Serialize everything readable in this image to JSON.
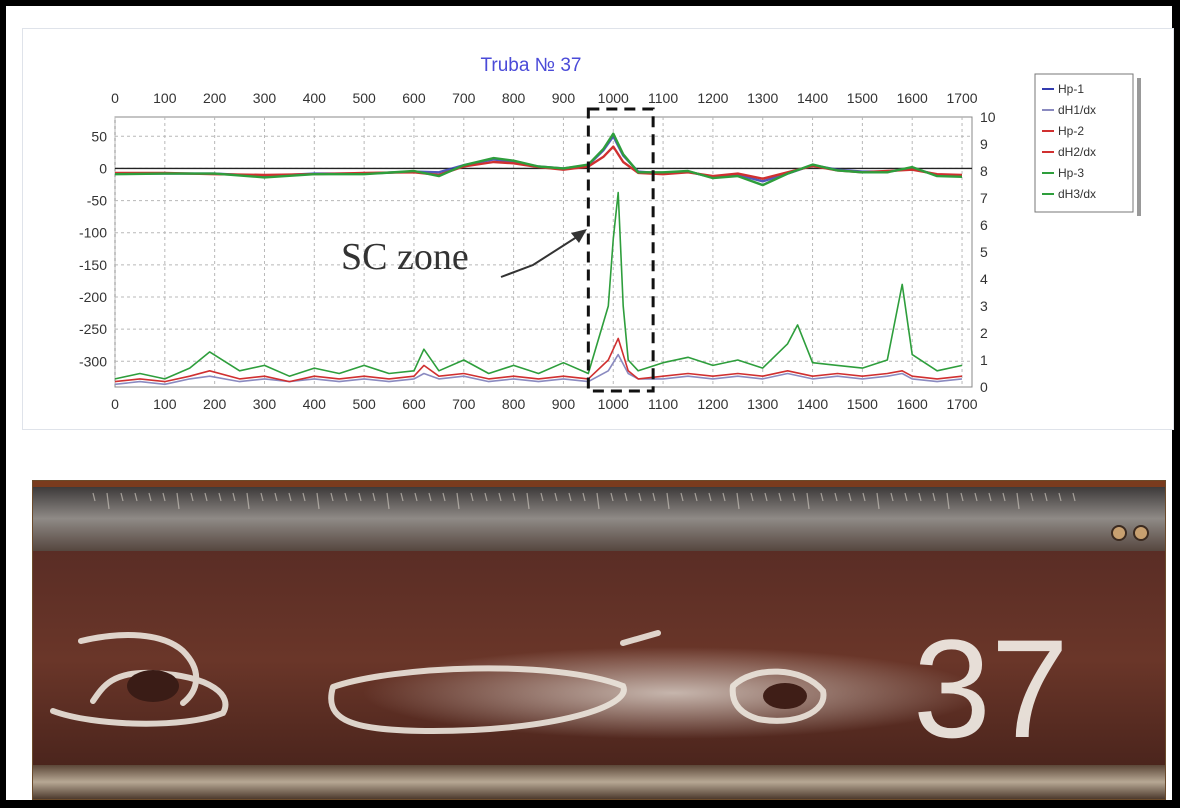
{
  "chart_data": {
    "type": "line",
    "title": "Truba № 37",
    "x_ticks": [
      0,
      100,
      200,
      300,
      400,
      500,
      600,
      700,
      800,
      900,
      1000,
      1100,
      1200,
      1300,
      1400,
      1500,
      1600,
      1700
    ],
    "x_range": [
      0,
      1720
    ],
    "y_left_ticks": [
      50,
      0,
      -50,
      -100,
      -150,
      -200,
      -250,
      -300
    ],
    "y_left_range": [
      -340,
      80
    ],
    "y_right_ticks": [
      10,
      9,
      8,
      7,
      6,
      5,
      4,
      3,
      2,
      1,
      0
    ],
    "y_right_range": [
      0,
      10
    ],
    "grid": true,
    "legend_position": "right",
    "legend": [
      "Hp-1",
      "dH1/dx",
      "Hp-2",
      "dH2/dx",
      "Hp-3",
      "dH3/dx"
    ],
    "annotation": {
      "text": "SC zone",
      "x_start": 950,
      "x_end": 1080
    },
    "series": [
      {
        "name": "Hp-1",
        "axis": "left",
        "color": "#333cb0",
        "x": [
          0,
          100,
          200,
          300,
          400,
          500,
          600,
          650,
          700,
          760,
          800,
          850,
          900,
          950,
          980,
          1000,
          1020,
          1050,
          1100,
          1150,
          1200,
          1250,
          1300,
          1350,
          1400,
          1450,
          1500,
          1550,
          1600,
          1650,
          1700
        ],
        "values": [
          -8,
          -8,
          -8,
          -12,
          -8,
          -8,
          -5,
          -6,
          5,
          14,
          10,
          3,
          0,
          5,
          28,
          50,
          20,
          -5,
          -8,
          -5,
          -14,
          -10,
          -20,
          -8,
          5,
          -2,
          -5,
          -5,
          0,
          -10,
          -12
        ]
      },
      {
        "name": "Hp-2",
        "axis": "left",
        "color": "#d03030",
        "x": [
          0,
          100,
          200,
          300,
          400,
          500,
          600,
          650,
          700,
          760,
          800,
          850,
          900,
          950,
          980,
          1000,
          1020,
          1050,
          1100,
          1150,
          1200,
          1250,
          1300,
          1350,
          1400,
          1450,
          1500,
          1550,
          1600,
          1650,
          1700
        ],
        "values": [
          -7,
          -7,
          -9,
          -10,
          -9,
          -7,
          -6,
          -10,
          3,
          10,
          8,
          2,
          -2,
          3,
          18,
          34,
          10,
          -7,
          -9,
          -6,
          -12,
          -8,
          -16,
          -6,
          4,
          -3,
          -6,
          -4,
          -2,
          -9,
          -10
        ]
      },
      {
        "name": "Hp-3",
        "axis": "left",
        "color": "#2e9e3c",
        "x": [
          0,
          100,
          200,
          300,
          400,
          500,
          600,
          650,
          700,
          760,
          800,
          850,
          900,
          950,
          980,
          1000,
          1020,
          1050,
          1100,
          1150,
          1200,
          1250,
          1300,
          1350,
          1400,
          1450,
          1500,
          1550,
          1600,
          1650,
          1700
        ],
        "values": [
          -9,
          -8,
          -8,
          -14,
          -9,
          -9,
          -4,
          -12,
          5,
          16,
          12,
          3,
          0,
          6,
          30,
          54,
          22,
          -6,
          -6,
          -4,
          -15,
          -12,
          -26,
          -8,
          6,
          -3,
          -6,
          -6,
          2,
          -12,
          -13
        ]
      },
      {
        "name": "dH1/dx",
        "axis": "right",
        "color": "#8a8ac0",
        "x": [
          0,
          50,
          100,
          150,
          190,
          250,
          300,
          350,
          400,
          450,
          500,
          550,
          600,
          620,
          650,
          700,
          750,
          800,
          850,
          900,
          950,
          990,
          1010,
          1030,
          1050,
          1100,
          1150,
          1200,
          1250,
          1300,
          1350,
          1400,
          1450,
          1500,
          1550,
          1580,
          1600,
          1650,
          1700
        ],
        "values": [
          0.1,
          0.2,
          0.1,
          0.3,
          0.4,
          0.2,
          0.3,
          0.2,
          0.3,
          0.2,
          0.3,
          0.2,
          0.3,
          0.5,
          0.3,
          0.4,
          0.2,
          0.3,
          0.2,
          0.3,
          0.2,
          0.6,
          1.2,
          0.5,
          0.3,
          0.3,
          0.4,
          0.3,
          0.4,
          0.3,
          0.5,
          0.3,
          0.4,
          0.3,
          0.4,
          0.5,
          0.3,
          0.2,
          0.3
        ]
      },
      {
        "name": "dH2/dx",
        "axis": "right",
        "color": "#d03030",
        "x": [
          0,
          50,
          100,
          150,
          190,
          250,
          300,
          350,
          400,
          450,
          500,
          550,
          600,
          620,
          650,
          700,
          750,
          800,
          850,
          900,
          950,
          990,
          1010,
          1030,
          1050,
          1100,
          1150,
          1200,
          1250,
          1300,
          1350,
          1400,
          1450,
          1500,
          1550,
          1580,
          1600,
          1650,
          1700
        ],
        "values": [
          0.2,
          0.3,
          0.2,
          0.4,
          0.6,
          0.3,
          0.4,
          0.2,
          0.4,
          0.3,
          0.4,
          0.3,
          0.4,
          0.8,
          0.4,
          0.5,
          0.3,
          0.4,
          0.3,
          0.4,
          0.3,
          1.0,
          1.8,
          0.6,
          0.3,
          0.4,
          0.5,
          0.4,
          0.5,
          0.4,
          0.6,
          0.4,
          0.5,
          0.4,
          0.5,
          0.6,
          0.4,
          0.3,
          0.4
        ]
      },
      {
        "name": "dH3/dx",
        "axis": "right",
        "color": "#2e9e3c",
        "x": [
          0,
          50,
          100,
          150,
          190,
          250,
          300,
          350,
          400,
          450,
          500,
          550,
          600,
          620,
          650,
          700,
          750,
          800,
          850,
          900,
          950,
          990,
          1000,
          1010,
          1020,
          1030,
          1050,
          1100,
          1150,
          1200,
          1250,
          1300,
          1350,
          1370,
          1400,
          1450,
          1500,
          1550,
          1580,
          1600,
          1650,
          1700
        ],
        "values": [
          0.3,
          0.5,
          0.3,
          0.7,
          1.3,
          0.6,
          0.8,
          0.4,
          0.7,
          0.5,
          0.8,
          0.5,
          0.6,
          1.4,
          0.6,
          1.0,
          0.5,
          0.8,
          0.5,
          0.9,
          0.5,
          3.0,
          5.5,
          7.2,
          3.0,
          1.0,
          0.6,
          0.9,
          1.1,
          0.8,
          1.0,
          0.7,
          1.6,
          2.3,
          0.9,
          0.8,
          0.7,
          1.0,
          3.8,
          1.2,
          0.6,
          0.8
        ]
      }
    ]
  },
  "photo": {
    "chalk_number": "37"
  }
}
